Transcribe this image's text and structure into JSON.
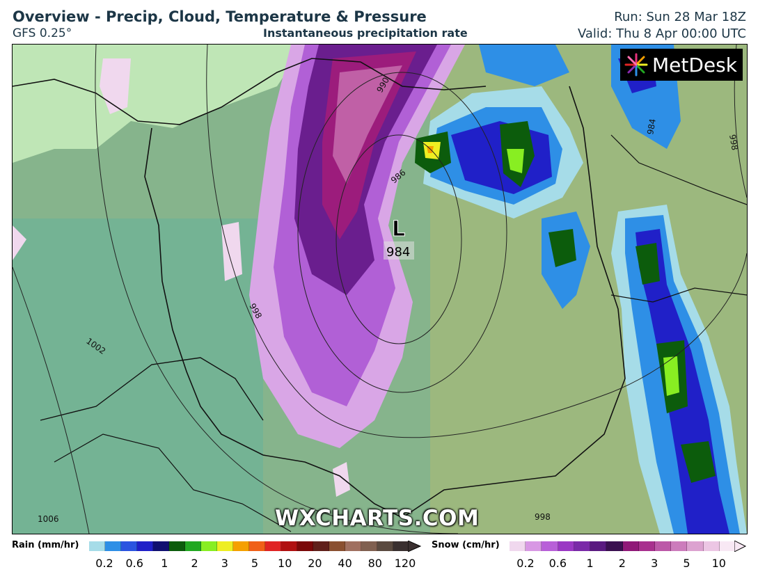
{
  "header": {
    "title": "Overview - Precip, Cloud, Temperature & Pressure",
    "model": "GFS 0.25°",
    "subtitle": "Instantaneous precipitation rate",
    "run": "Run: Sun 28 Mar 18Z",
    "valid": "Valid: Thu 8 Apr 00:00 UTC"
  },
  "map": {
    "low_pressure": {
      "symbol": "L",
      "value": "984"
    },
    "isobar_labels": [
      "990",
      "986",
      "984",
      "998",
      "998",
      "1002",
      "1006",
      "998"
    ],
    "logo_text": "MetDesk",
    "watermark": "WXCHARTS.COM"
  },
  "legend": {
    "rain": {
      "label": "Rain (mm/hr)",
      "ticks": [
        "0.2",
        "0.6",
        "1",
        "2",
        "3",
        "5",
        "10",
        "20",
        "40",
        "80",
        "120"
      ],
      "colors": [
        "#a6dce8",
        "#2e8fe6",
        "#2b54e0",
        "#2020c8",
        "#101070",
        "#0c5c0c",
        "#22a822",
        "#88ee22",
        "#eeee22",
        "#f5a000",
        "#f06018",
        "#e02424",
        "#b01010",
        "#7a0808",
        "#60201a",
        "#8a5030",
        "#a07060",
        "#806050",
        "#5a4a40",
        "#3a3030"
      ]
    },
    "snow": {
      "label": "Snow (cm/hr)",
      "ticks": [
        "0.2",
        "0.6",
        "1",
        "2",
        "3",
        "5",
        "10"
      ],
      "colors": [
        "#f0d8ee",
        "#d898e4",
        "#b860d8",
        "#9a38c4",
        "#7a2aa8",
        "#5a1a80",
        "#3a1050",
        "#901878",
        "#a8308e",
        "#bc58a8",
        "#cc7cbc",
        "#dca2d0",
        "#ecc6e4",
        "#f8e8f4"
      ]
    }
  },
  "colors": {
    "land_green": "#7fb48a",
    "sea": "#bfe6b6",
    "rain_blue": "#2030d0",
    "snow_purple": "#8a2ab0"
  }
}
